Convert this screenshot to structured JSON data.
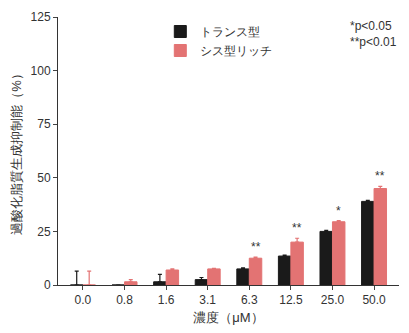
{
  "chart_data": {
    "type": "bar",
    "xlabel": "濃度（μM）",
    "ylabel": "過酸化脂質生成抑制能（%）",
    "categories": [
      "0.0",
      "0.8",
      "1.6",
      "3.1",
      "6.3",
      "12.5",
      "25.0",
      "50.0"
    ],
    "series": [
      {
        "name": "トランス型",
        "color": "#1a1a1a",
        "values": [
          0,
          0,
          1.5,
          2.5,
          7.5,
          13.5,
          25,
          39
        ],
        "errors": [
          6.5,
          0,
          3.5,
          1,
          0.5,
          0.5,
          0.5,
          0.5
        ]
      },
      {
        "name": "シス型リッチ",
        "color": "#e37373",
        "values": [
          0,
          1.5,
          7,
          7.5,
          12.5,
          20,
          29.5,
          45
        ],
        "errors": [
          6.5,
          1,
          0.5,
          0.3,
          0.5,
          1.8,
          0.5,
          1
        ]
      }
    ],
    "annotations": [
      {
        "category": "6.3",
        "series": "シス型リッチ",
        "text": "**"
      },
      {
        "category": "12.5",
        "series": "シス型リッチ",
        "text": "**"
      },
      {
        "category": "25.0",
        "series": "シス型リッチ",
        "text": "*"
      },
      {
        "category": "50.0",
        "series": "シス型リッチ",
        "text": "**"
      }
    ],
    "notes": [
      "*p<0.05",
      "**p<0.01"
    ],
    "ylim": [
      0,
      125
    ],
    "yticks": [
      0,
      25,
      50,
      75,
      100,
      125
    ],
    "grid": false,
    "legend": "top"
  }
}
